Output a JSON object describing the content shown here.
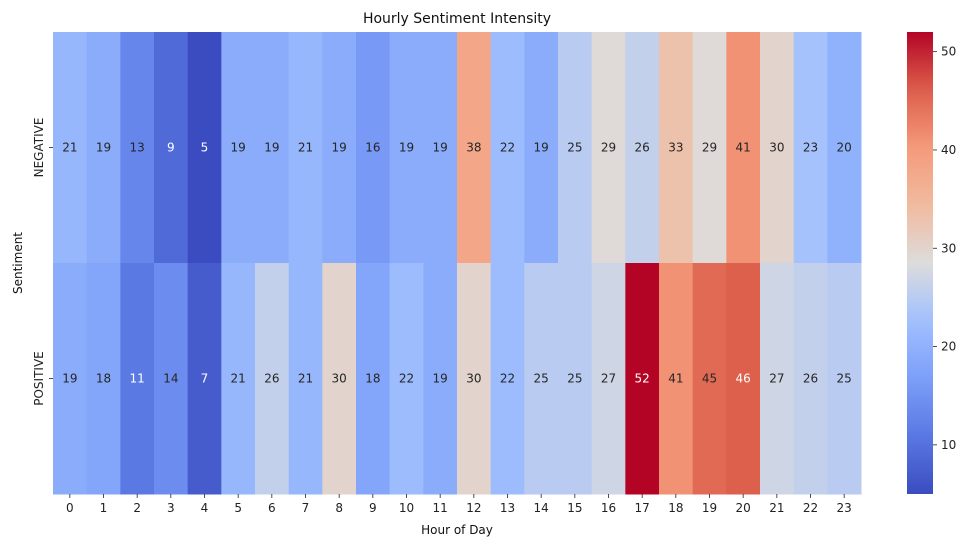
{
  "chart_data": {
    "type": "heatmap",
    "title": "Hourly Sentiment Intensity",
    "xlabel": "Hour of Day",
    "ylabel": "Sentiment",
    "x_categories": [
      "0",
      "1",
      "2",
      "3",
      "4",
      "5",
      "6",
      "7",
      "8",
      "9",
      "10",
      "11",
      "12",
      "13",
      "14",
      "15",
      "16",
      "17",
      "18",
      "19",
      "20",
      "21",
      "22",
      "23"
    ],
    "y_categories": [
      "NEGATIVE",
      "POSITIVE"
    ],
    "values": [
      [
        21,
        19,
        13,
        9,
        5,
        19,
        19,
        21,
        19,
        16,
        19,
        19,
        38,
        22,
        19,
        25,
        29,
        26,
        33,
        29,
        41,
        30,
        23,
        20
      ],
      [
        19,
        18,
        11,
        14,
        7,
        21,
        26,
        21,
        30,
        18,
        22,
        19,
        30,
        22,
        25,
        25,
        27,
        52,
        41,
        45,
        46,
        27,
        26,
        25
      ]
    ],
    "colormap": "coolwarm",
    "vmin": 5,
    "vmax": 52,
    "colorbar_ticks": [
      10,
      20,
      30,
      40,
      50
    ],
    "annotate": true
  }
}
